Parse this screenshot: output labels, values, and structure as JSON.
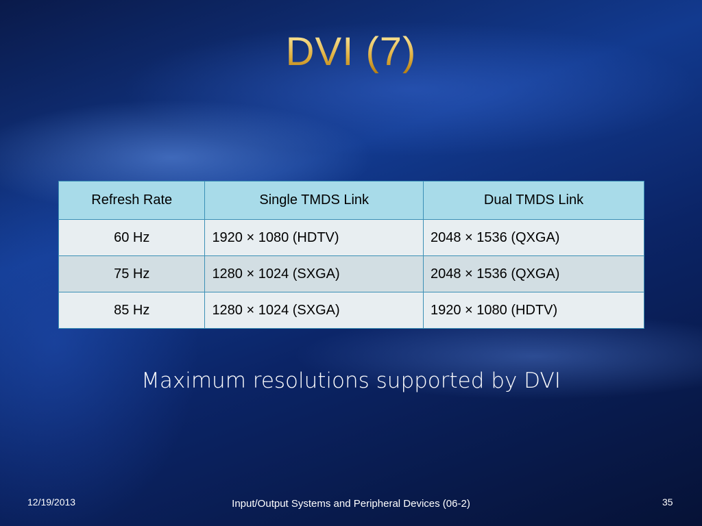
{
  "title": "DVI (7)",
  "table": {
    "header": [
      "Refresh Rate",
      "Single TMDS Link",
      "Dual TMDS Link"
    ],
    "rows": [
      [
        "60 Hz",
        "1920 × 1080 (HDTV)",
        "2048 × 1536 (QXGA)"
      ],
      [
        "75 Hz",
        "1280 × 1024 (SXGA)",
        "2048 × 1536 (QXGA)"
      ],
      [
        "85 Hz",
        "1280 × 1024 (SXGA)",
        "1920 × 1080 (HDTV)"
      ]
    ]
  },
  "caption": "Maximum resolutions supported by DVI",
  "footer": {
    "date": "12/19/2013",
    "text": "Input/Output Systems and Peripheral Devices (06-2)",
    "page": "35"
  }
}
